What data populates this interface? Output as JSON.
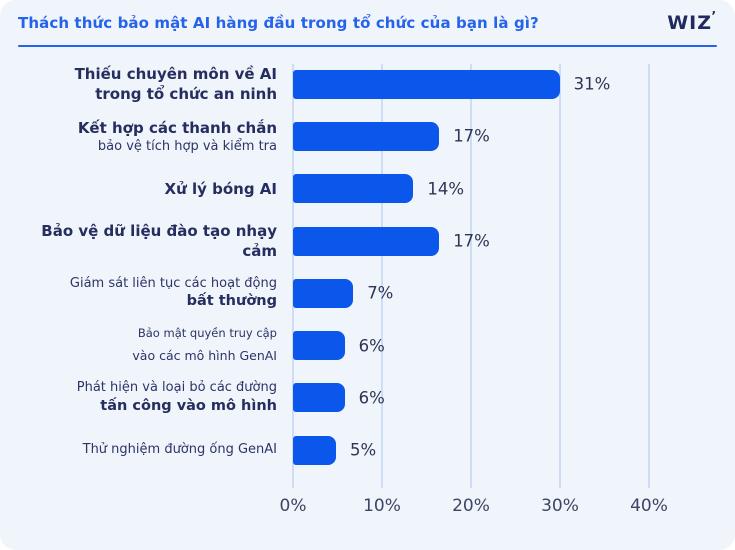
{
  "header": {
    "title": "Thách thức bảo mật AI hàng đầu trong tổ chức của bạn là gì?",
    "logo_text": "WIZ",
    "logo_mark": "’"
  },
  "chart_data": {
    "type": "bar",
    "orientation": "horizontal",
    "title": "Thách thức bảo mật AI hàng đầu trong tổ chức của bạn là gì?",
    "categories": [
      "Thiếu chuyên môn về AI trong tổ chức an ninh",
      "Kết hợp các thanh chắn bảo vệ tích hợp và kiểm tra",
      "Xử lý bóng AI",
      "Bảo vệ dữ liệu đào tạo nhạy cảm",
      "Giám sát liên tục các hoạt động bất thường",
      "Bảo mật quyền truy cập vào các mô hình GenAI",
      "Phát hiện và loại bỏ các đường tấn công vào mô hình",
      "Thử nghiệm đường ống GenAI"
    ],
    "values": [
      31,
      17,
      14,
      17,
      7,
      6,
      6,
      5
    ],
    "value_labels": [
      "31%",
      "17%",
      "14%",
      "17%",
      "7%",
      "6%",
      "6%",
      "5%"
    ],
    "xticks": [
      "0%",
      "10%",
      "20%",
      "30%",
      "40%"
    ],
    "xtick_values": [
      0,
      10,
      20,
      30,
      40
    ],
    "xlim": [
      0,
      42
    ],
    "grid": true,
    "legend": false,
    "bar_color": "#0b57eb"
  },
  "row_labels": [
    {
      "lines": [
        {
          "text": "Thiếu chuyên môn về AI",
          "style": "lgb"
        },
        {
          "text": "trong tổ chức an ninh",
          "style": "lgb"
        }
      ]
    },
    {
      "lines": [
        {
          "text": "Kết hợp các thanh chắn",
          "style": "lgb"
        },
        {
          "text": "bảo vệ tích hợp và kiểm tra",
          "style": "md"
        }
      ]
    },
    {
      "lines": [
        {
          "text": "Xử lý bóng AI",
          "style": "lgb"
        }
      ]
    },
    {
      "lines": [
        {
          "text": "Bảo vệ dữ liệu đào tạo nhạy",
          "style": "lgb"
        },
        {
          "text": "cảm",
          "style": "lgb"
        }
      ]
    },
    {
      "lines": [
        {
          "text": "Giám sát liên tục các hoạt động",
          "style": "md"
        },
        {
          "text": "bất thường",
          "style": "mdb"
        }
      ]
    },
    {
      "lines": [
        {
          "text": "Bảo mật quyền truy cập",
          "style": "sm"
        },
        {
          "text": "vào các mô hình GenAI",
          "style": "sm2"
        }
      ]
    },
    {
      "lines": [
        {
          "text": "Phát hiện và loại bỏ các đường",
          "style": "md"
        },
        {
          "text": "tấn công vào mô hình",
          "style": "mdb"
        }
      ]
    },
    {
      "lines": [
        {
          "text": "Thử nghiệm đường ống GenAI",
          "style": "md"
        }
      ]
    }
  ],
  "colors": {
    "bar": "#0b57eb",
    "title": "#2563eb",
    "divider": "#2563eb",
    "label_text": "#252e5e",
    "value_text": "#2e3554",
    "tick_text": "#3d4566",
    "gridline": "#cdddf6",
    "card_background": "#f0f4fb",
    "logo": "#202a5e"
  }
}
